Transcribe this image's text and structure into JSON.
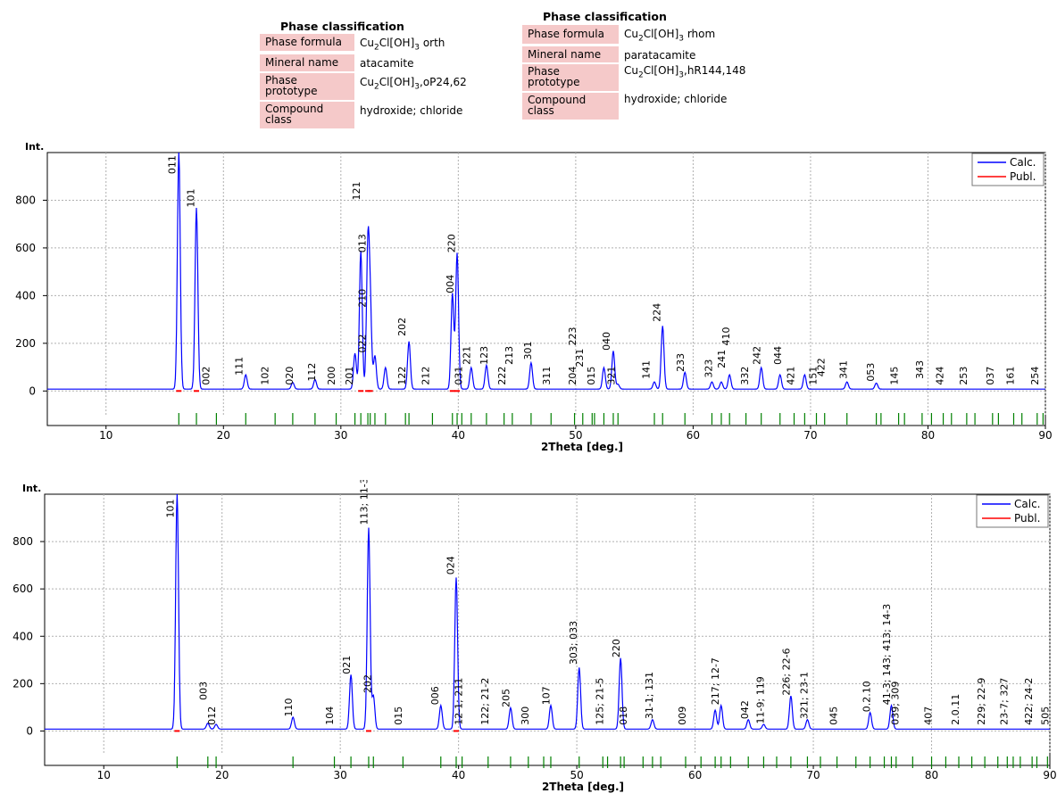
{
  "phases": [
    {
      "title": "Phase classification",
      "rows": [
        {
          "label": "Phase formula",
          "value_html": "Cu<sub>2</sub>Cl[OH]<sub>3</sub> orth"
        },
        {
          "label": "Mineral name",
          "value_html": "atacamite"
        },
        {
          "label": "Phase prototype",
          "value_html": "Cu<sub>2</sub>Cl[OH]<sub>3</sub>,oP24,62"
        },
        {
          "label": "Compound class",
          "value_html": "hydroxide; chloride"
        }
      ]
    },
    {
      "title": "Phase classification",
      "rows": [
        {
          "label": "Phase formula",
          "value_html": "Cu<sub>2</sub>Cl[OH]<sub>3</sub> rhom"
        },
        {
          "label": "Mineral name",
          "value_html": "paratacamite"
        },
        {
          "label": "Phase prototype",
          "value_html": "Cu<sub>2</sub>Cl[OH]<sub>3</sub>,hR144,148"
        },
        {
          "label": "Compound class",
          "value_html": "hydroxide; chloride"
        }
      ]
    }
  ],
  "chart_data": [
    {
      "type": "line",
      "ylabel": "Int.",
      "xlabel": "2Theta [deg.]",
      "xlim": [
        5,
        90
      ],
      "ylim": [
        -70,
        1000
      ],
      "xticks": [
        10,
        20,
        30,
        40,
        50,
        60,
        70,
        80,
        90
      ],
      "yticks": [
        0,
        200,
        400,
        600,
        800
      ],
      "legend": {
        "position": "top-right",
        "entries": [
          {
            "name": "Calc.",
            "color": "#0000ff"
          },
          {
            "name": "Publ.",
            "color": "#ff0000"
          }
        ]
      },
      "peaks": [
        [
          16.2,
          1000,
          "011"
        ],
        [
          17.7,
          760,
          "101"
        ],
        [
          19.4,
          0,
          "002"
        ],
        [
          21.9,
          60,
          "111"
        ],
        [
          24.4,
          0,
          "102"
        ],
        [
          25.9,
          28,
          "020"
        ],
        [
          27.8,
          40,
          "112"
        ],
        [
          29.6,
          0,
          "200"
        ],
        [
          31.2,
          150,
          "201"
        ],
        [
          31.7,
          580,
          "121"
        ],
        [
          32.3,
          580,
          "013"
        ],
        [
          32.5,
          330,
          "210"
        ],
        [
          32.9,
          140,
          "022"
        ],
        [
          33.8,
          90,
          "%%"
        ],
        [
          35.5,
          0,
          "122"
        ],
        [
          35.8,
          200,
          "202"
        ],
        [
          37.8,
          0,
          "212"
        ],
        [
          39.5,
          400,
          "004"
        ],
        [
          39.9,
          570,
          "220"
        ],
        [
          40.3,
          0,
          "031"
        ],
        [
          41.1,
          90,
          "221"
        ],
        [
          42.4,
          100,
          "123"
        ],
        [
          43.9,
          0,
          "222"
        ],
        [
          44.6,
          0,
          "213"
        ],
        [
          46.2,
          110,
          "301"
        ],
        [
          47.9,
          0,
          "311"
        ],
        [
          49.9,
          0,
          "204"
        ],
        [
          50.6,
          0,
          "223"
        ],
        [
          51.4,
          0,
          "231"
        ],
        [
          51.6,
          0,
          "015"
        ],
        [
          52.4,
          90,
          "%%"
        ],
        [
          53.2,
          160,
          "040"
        ],
        [
          53.6,
          20,
          "321"
        ],
        [
          56.7,
          30,
          "141"
        ],
        [
          57.4,
          265,
          "224"
        ],
        [
          59.3,
          70,
          "233"
        ],
        [
          61.6,
          30,
          "323"
        ],
        [
          62.4,
          30,
          "241"
        ],
        [
          63.1,
          60,
          "410"
        ],
        [
          64.5,
          0,
          "332"
        ],
        [
          65.8,
          90,
          "242"
        ],
        [
          67.4,
          60,
          "044"
        ],
        [
          68.6,
          0,
          "421"
        ],
        [
          69.5,
          60,
          "%%"
        ],
        [
          70.5,
          0,
          "151"
        ],
        [
          71.2,
          0,
          "422"
        ],
        [
          73.1,
          30,
          "341"
        ],
        [
          75.6,
          25,
          "053"
        ],
        [
          77.5,
          0,
          "145"
        ],
        [
          79.5,
          0,
          "343"
        ],
        [
          81.3,
          0,
          "424"
        ],
        [
          83.3,
          0,
          "253"
        ],
        [
          85.5,
          0,
          "037"
        ],
        [
          87.3,
          0,
          "161"
        ],
        [
          89.3,
          0,
          "254"
        ]
      ],
      "labels": [
        [
          "011",
          15.9,
          910
        ],
        [
          "101",
          17.5,
          770
        ],
        [
          "002",
          18.8,
          25
        ],
        [
          "111",
          21.6,
          65
        ],
        [
          "102",
          23.8,
          25
        ],
        [
          "020",
          25.9,
          25
        ],
        [
          "112",
          27.8,
          40
        ],
        [
          "200",
          29.5,
          25
        ],
        [
          "201",
          31.0,
          25
        ],
        [
          "121",
          31.6,
          800
        ],
        [
          "013",
          32.1,
          580
        ],
        [
          "210",
          32.1,
          350
        ],
        [
          "022",
          32.1,
          160
        ],
        [
          "202",
          35.5,
          230
        ],
        [
          "122",
          35.5,
          25
        ],
        [
          "212",
          37.5,
          25
        ],
        [
          "220",
          39.7,
          580
        ],
        [
          "004",
          39.6,
          410
        ],
        [
          "031",
          40.3,
          25
        ],
        [
          "221",
          41.0,
          110
        ],
        [
          "123",
          42.5,
          110
        ],
        [
          "222",
          44.0,
          25
        ],
        [
          "213",
          44.6,
          110
        ],
        [
          "301",
          46.2,
          130
        ],
        [
          "311",
          47.8,
          25
        ],
        [
          "204",
          50.0,
          25
        ],
        [
          "223",
          50.0,
          190
        ],
        [
          "231",
          50.6,
          100
        ],
        [
          "015",
          51.6,
          25
        ],
        [
          "040",
          52.9,
          170
        ],
        [
          "321",
          53.3,
          25
        ],
        [
          "141",
          56.3,
          50
        ],
        [
          "224",
          57.2,
          290
        ],
        [
          "233",
          59.2,
          80
        ],
        [
          "323",
          61.6,
          55
        ],
        [
          "241",
          62.7,
          95
        ],
        [
          "410",
          63.1,
          190
        ],
        [
          "332",
          64.7,
          25
        ],
        [
          "242",
          65.7,
          110
        ],
        [
          "044",
          67.5,
          110
        ],
        [
          "421",
          68.6,
          25
        ],
        [
          "151",
          70.5,
          25
        ],
        [
          "422",
          71.2,
          60
        ],
        [
          "341",
          73.1,
          50
        ],
        [
          "053",
          75.4,
          40
        ],
        [
          "145",
          77.4,
          25
        ],
        [
          "343",
          79.6,
          50
        ],
        [
          "424",
          81.3,
          25
        ],
        [
          "253",
          83.3,
          25
        ],
        [
          "037",
          85.6,
          25
        ],
        [
          "161",
          87.3,
          25
        ],
        [
          "254",
          89.4,
          25
        ]
      ],
      "green_ticks": [
        16.2,
        17.7,
        19.4,
        21.9,
        24.4,
        25.9,
        27.8,
        29.6,
        31.2,
        31.7,
        32.3,
        32.5,
        32.9,
        33.8,
        35.5,
        35.8,
        37.8,
        39.5,
        39.9,
        40.3,
        41.1,
        42.4,
        43.9,
        44.6,
        46.2,
        47.9,
        49.9,
        50.6,
        51.4,
        51.6,
        52.4,
        53.2,
        53.6,
        56.7,
        57.4,
        59.3,
        61.6,
        62.4,
        63.1,
        64.5,
        65.8,
        67.4,
        68.6,
        69.5,
        70.5,
        71.2,
        73.1,
        75.6,
        77.5,
        79.5,
        81.3,
        83.3,
        85.5,
        87.3,
        89.3,
        76.0,
        78.0,
        80.3,
        82.0,
        84.0,
        86.0,
        88.0,
        89.8
      ]
    },
    {
      "type": "line",
      "ylabel": "Int.",
      "xlabel": "2Theta [deg.]",
      "xlim": [
        5,
        90
      ],
      "ylim": [
        -70,
        1000
      ],
      "xticks": [
        10,
        20,
        30,
        40,
        50,
        60,
        70,
        80,
        90
      ],
      "yticks": [
        0,
        200,
        400,
        600,
        800
      ],
      "legend": {
        "position": "top-right",
        "entries": [
          {
            "name": "Calc.",
            "color": "#0000ff"
          },
          {
            "name": "Publ.",
            "color": "#ff0000"
          }
        ]
      },
      "peaks": [
        [
          16.2,
          1000,
          "101"
        ],
        [
          18.8,
          25,
          "003"
        ],
        [
          19.5,
          20,
          "012"
        ],
        [
          26.0,
          50,
          "110"
        ],
        [
          29.5,
          0,
          "104"
        ],
        [
          30.9,
          230,
          "021"
        ],
        [
          32.4,
          850,
          "113; 11-3"
        ],
        [
          32.8,
          140,
          "202"
        ],
        [
          35.3,
          0,
          "015"
        ],
        [
          38.5,
          100,
          "006"
        ],
        [
          39.8,
          640,
          "024"
        ],
        [
          40.3,
          0,
          "12-1; 211"
        ],
        [
          42.5,
          0,
          "122; 21-2"
        ],
        [
          44.4,
          90,
          "205"
        ],
        [
          45.9,
          0,
          "300"
        ],
        [
          47.8,
          100,
          "107"
        ],
        [
          50.2,
          260,
          "303; 033"
        ],
        [
          52.2,
          0,
          "125; 21-5"
        ],
        [
          53.7,
          300,
          "220"
        ],
        [
          54.0,
          0,
          "018"
        ],
        [
          56.4,
          40,
          "31-1; 131"
        ],
        [
          59.2,
          0,
          "009"
        ],
        [
          61.7,
          80,
          "217; 12-7"
        ],
        [
          62.2,
          100,
          "%%"
        ],
        [
          64.5,
          40,
          "042"
        ],
        [
          65.8,
          20,
          "11-9; 119"
        ],
        [
          68.1,
          140,
          "226; 22-6"
        ],
        [
          69.5,
          40,
          "321; 23-1"
        ],
        [
          72.0,
          0,
          "045"
        ],
        [
          74.8,
          70,
          "0.2.10"
        ],
        [
          76.6,
          100,
          "41-3; 143; 413; 14-3"
        ],
        [
          77.0,
          0,
          "039; 309"
        ],
        [
          80.0,
          0,
          "407"
        ],
        [
          82.3,
          0,
          "2.0.11"
        ],
        [
          84.5,
          0,
          "229; 22-9"
        ],
        [
          86.4,
          0,
          "23-7; 327"
        ],
        [
          88.5,
          0,
          "422; 24-2"
        ],
        [
          89.8,
          0,
          "505"
        ]
      ],
      "labels": [
        [
          "101",
          15.9,
          900
        ],
        [
          "003",
          18.7,
          130
        ],
        [
          "012",
          19.4,
          25
        ],
        [
          "110",
          25.9,
          60
        ],
        [
          "104",
          29.4,
          25
        ],
        [
          "021",
          30.8,
          240
        ],
        [
          "113; 11-3",
          32.3,
          870
        ],
        [
          "202",
          32.6,
          160
        ],
        [
          "015",
          35.2,
          25
        ],
        [
          "006",
          38.3,
          110
        ],
        [
          "024",
          39.6,
          660
        ],
        [
          "12-1; 211",
          40.3,
          25
        ],
        [
          "122; 21-2",
          42.5,
          25
        ],
        [
          "205",
          44.3,
          100
        ],
        [
          "300",
          45.9,
          25
        ],
        [
          "107",
          47.7,
          110
        ],
        [
          "303; 033",
          50.0,
          280
        ],
        [
          "125; 21-5",
          52.2,
          25
        ],
        [
          "220",
          53.6,
          310
        ],
        [
          "018",
          54.2,
          25
        ],
        [
          "31-1; 131",
          56.4,
          50
        ],
        [
          "009",
          59.2,
          25
        ],
        [
          "217; 12-7",
          62.0,
          110
        ],
        [
          "042",
          64.5,
          50
        ],
        [
          "11-9; 119",
          65.8,
          30
        ],
        [
          "226; 22-6",
          68.0,
          150
        ],
        [
          "321; 23-1",
          69.5,
          50
        ],
        [
          "045",
          72.0,
          25
        ],
        [
          "0.2.10",
          74.8,
          80
        ],
        [
          "41-3; 143; 413; 14-3",
          76.5,
          110
        ],
        [
          "039; 309",
          77.2,
          25
        ],
        [
          "407",
          80.0,
          25
        ],
        [
          "2.0.11",
          82.3,
          25
        ],
        [
          "229; 22-9",
          84.5,
          25
        ],
        [
          "23-7; 327",
          86.4,
          25
        ],
        [
          "422; 24-2",
          88.5,
          25
        ],
        [
          "505",
          89.9,
          25
        ]
      ],
      "green_ticks": [
        16.2,
        18.8,
        19.5,
        26.0,
        29.5,
        30.9,
        32.4,
        32.8,
        35.3,
        38.5,
        39.8,
        40.3,
        42.5,
        44.4,
        45.9,
        47.8,
        50.2,
        52.2,
        53.7,
        54.0,
        56.4,
        59.2,
        61.7,
        62.2,
        64.5,
        65.8,
        68.1,
        69.5,
        72.0,
        74.8,
        76.6,
        77.0,
        80.0,
        82.3,
        84.5,
        86.4,
        88.5,
        89.8,
        47.2,
        52.6,
        55.6,
        57.1,
        60.5,
        63.0,
        66.9,
        70.6,
        73.6,
        76.0,
        78.4,
        81.2,
        83.4,
        85.6,
        86.9,
        87.5,
        88.9
      ]
    }
  ]
}
